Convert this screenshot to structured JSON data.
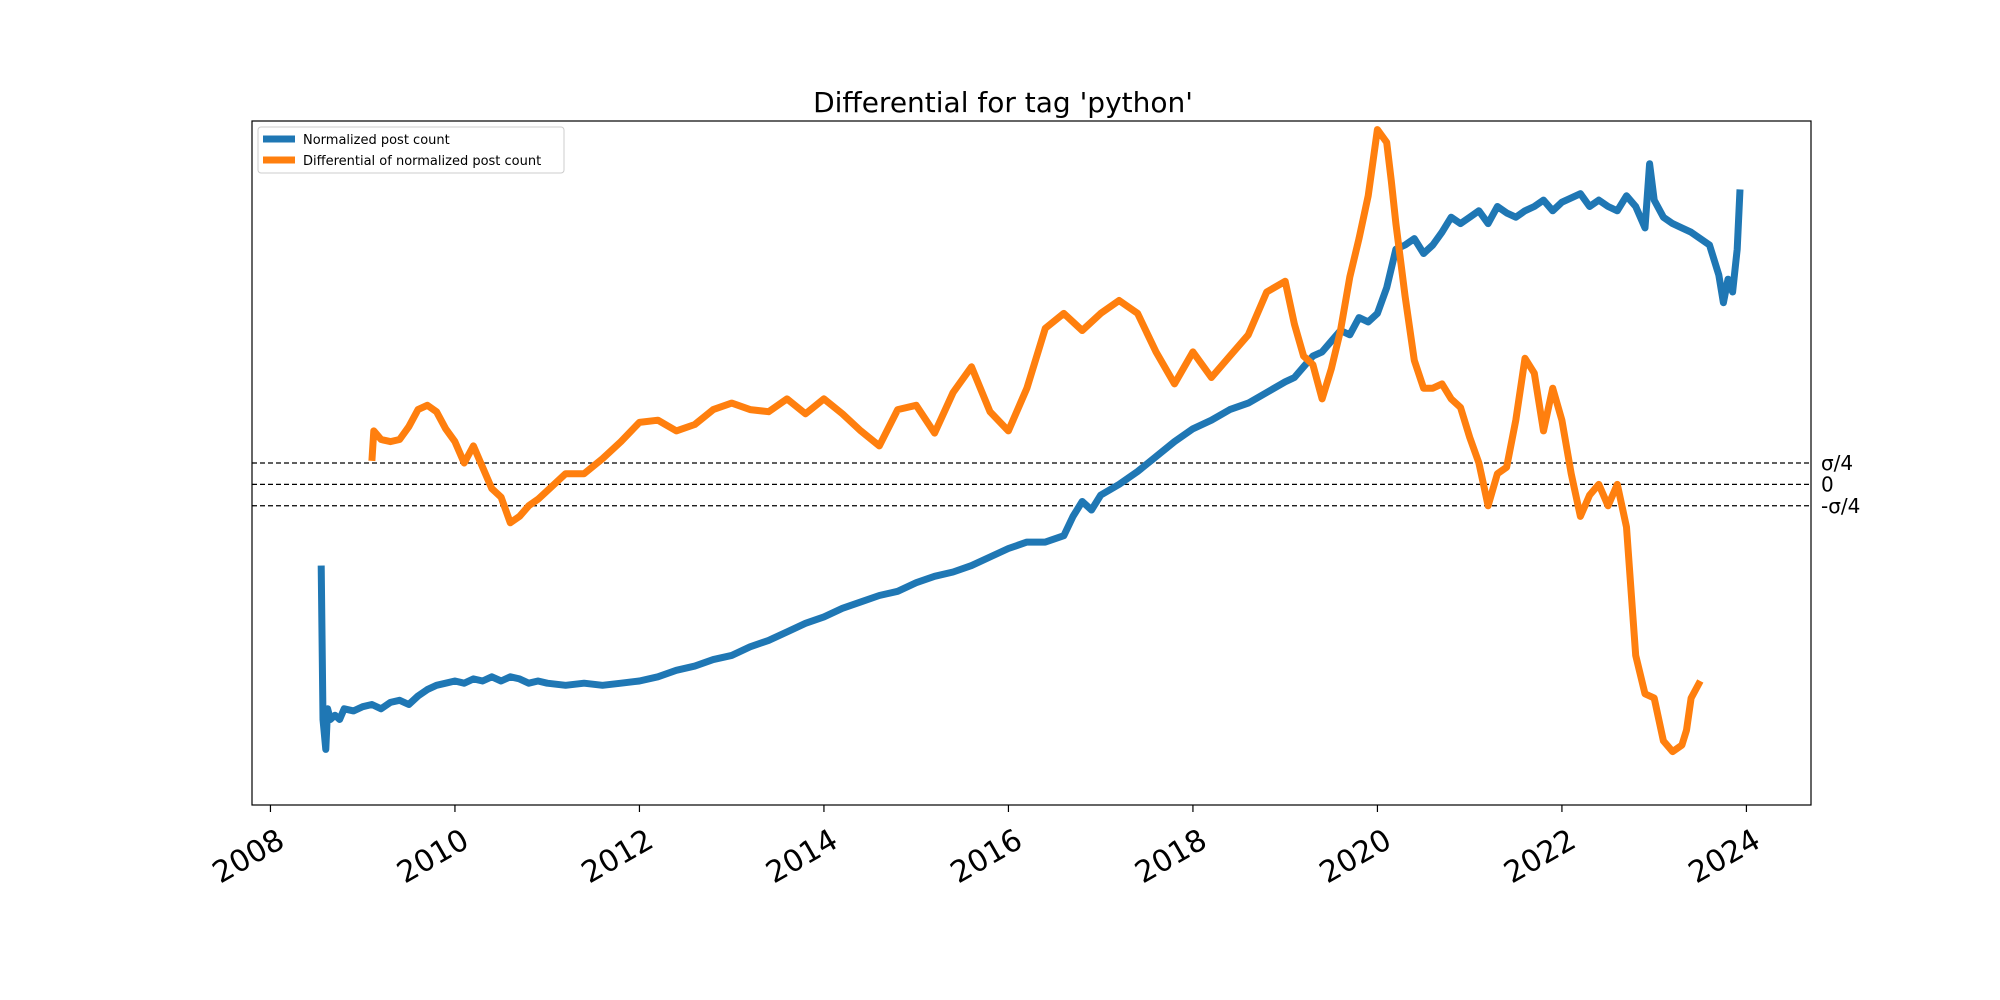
{
  "chart_data": {
    "type": "line",
    "title": "Differential for tag 'python'",
    "xlabel": "",
    "ylabel": "",
    "xlim": [
      2007.8,
      2024.7
    ],
    "ylim": [
      -1.5,
      1.7
    ],
    "x_ticks": [
      {
        "value": 2008,
        "label": "2008"
      },
      {
        "value": 2010,
        "label": "2010"
      },
      {
        "value": 2012,
        "label": "2012"
      },
      {
        "value": 2014,
        "label": "2014"
      },
      {
        "value": 2016,
        "label": "2016"
      },
      {
        "value": 2018,
        "label": "2018"
      },
      {
        "value": 2020,
        "label": "2020"
      },
      {
        "value": 2022,
        "label": "2022"
      },
      {
        "value": 2024,
        "label": "2024"
      }
    ],
    "reference_lines": [
      {
        "value": 0.1,
        "label": "σ/4"
      },
      {
        "value": 0.0,
        "label": "0"
      },
      {
        "value": -0.1,
        "label": "-σ/4"
      }
    ],
    "grid": false,
    "legend": "top-left",
    "series": [
      {
        "name": "Normalized post count",
        "color": "#1f77b4",
        "x": [
          2008.55,
          2008.57,
          2008.6,
          2008.62,
          2008.65,
          2008.7,
          2008.75,
          2008.8,
          2008.9,
          2009.0,
          2009.1,
          2009.2,
          2009.3,
          2009.4,
          2009.5,
          2009.6,
          2009.7,
          2009.8,
          2009.9,
          2010.0,
          2010.1,
          2010.2,
          2010.3,
          2010.4,
          2010.5,
          2010.6,
          2010.7,
          2010.8,
          2010.9,
          2011.0,
          2011.2,
          2011.4,
          2011.6,
          2011.8,
          2012.0,
          2012.2,
          2012.4,
          2012.6,
          2012.8,
          2013.0,
          2013.2,
          2013.4,
          2013.6,
          2013.8,
          2014.0,
          2014.2,
          2014.4,
          2014.6,
          2014.8,
          2015.0,
          2015.2,
          2015.4,
          2015.6,
          2015.8,
          2016.0,
          2016.2,
          2016.4,
          2016.6,
          2016.7,
          2016.8,
          2016.9,
          2017.0,
          2017.2,
          2017.4,
          2017.6,
          2017.8,
          2018.0,
          2018.2,
          2018.4,
          2018.6,
          2018.8,
          2019.0,
          2019.1,
          2019.2,
          2019.3,
          2019.4,
          2019.5,
          2019.6,
          2019.7,
          2019.8,
          2019.9,
          2020.0,
          2020.1,
          2020.2,
          2020.3,
          2020.4,
          2020.5,
          2020.6,
          2020.7,
          2020.8,
          2020.9,
          2021.0,
          2021.1,
          2021.2,
          2021.3,
          2021.4,
          2021.5,
          2021.6,
          2021.7,
          2021.8,
          2021.9,
          2022.0,
          2022.1,
          2022.2,
          2022.3,
          2022.4,
          2022.5,
          2022.6,
          2022.7,
          2022.8,
          2022.9,
          2022.95,
          2023.0,
          2023.1,
          2023.2,
          2023.3,
          2023.4,
          2023.5,
          2023.6,
          2023.7,
          2023.75,
          2023.8,
          2023.85,
          2023.9,
          2023.93
        ],
        "y": [
          -0.38,
          -1.1,
          -1.24,
          -1.05,
          -1.1,
          -1.08,
          -1.1,
          -1.05,
          -1.06,
          -1.04,
          -1.03,
          -1.05,
          -1.02,
          -1.01,
          -1.03,
          -0.99,
          -0.96,
          -0.94,
          -0.93,
          -0.92,
          -0.93,
          -0.91,
          -0.92,
          -0.9,
          -0.92,
          -0.9,
          -0.91,
          -0.93,
          -0.92,
          -0.93,
          -0.94,
          -0.93,
          -0.94,
          -0.93,
          -0.92,
          -0.9,
          -0.87,
          -0.85,
          -0.82,
          -0.8,
          -0.76,
          -0.73,
          -0.69,
          -0.65,
          -0.62,
          -0.58,
          -0.55,
          -0.52,
          -0.5,
          -0.46,
          -0.43,
          -0.41,
          -0.38,
          -0.34,
          -0.3,
          -0.27,
          -0.27,
          -0.24,
          -0.15,
          -0.08,
          -0.12,
          -0.05,
          0.0,
          0.06,
          0.13,
          0.2,
          0.26,
          0.3,
          0.35,
          0.38,
          0.43,
          0.48,
          0.5,
          0.55,
          0.6,
          0.62,
          0.67,
          0.72,
          0.7,
          0.78,
          0.76,
          0.8,
          0.92,
          1.1,
          1.12,
          1.15,
          1.08,
          1.12,
          1.18,
          1.25,
          1.22,
          1.25,
          1.28,
          1.22,
          1.3,
          1.27,
          1.25,
          1.28,
          1.3,
          1.33,
          1.28,
          1.32,
          1.34,
          1.36,
          1.3,
          1.33,
          1.3,
          1.28,
          1.35,
          1.3,
          1.2,
          1.5,
          1.33,
          1.25,
          1.22,
          1.2,
          1.18,
          1.15,
          1.12,
          0.98,
          0.85,
          0.96,
          0.9,
          1.1,
          1.38
        ]
      },
      {
        "name": "Differential of normalized post count",
        "color": "#ff7f0e",
        "x": [
          2009.1,
          2009.12,
          2009.2,
          2009.3,
          2009.4,
          2009.5,
          2009.6,
          2009.7,
          2009.8,
          2009.9,
          2010.0,
          2010.1,
          2010.2,
          2010.3,
          2010.4,
          2010.5,
          2010.6,
          2010.7,
          2010.8,
          2010.9,
          2011.0,
          2011.2,
          2011.4,
          2011.6,
          2011.8,
          2012.0,
          2012.2,
          2012.4,
          2012.6,
          2012.8,
          2013.0,
          2013.2,
          2013.4,
          2013.6,
          2013.8,
          2014.0,
          2014.2,
          2014.4,
          2014.6,
          2014.8,
          2015.0,
          2015.2,
          2015.4,
          2015.6,
          2015.8,
          2016.0,
          2016.2,
          2016.4,
          2016.6,
          2016.8,
          2017.0,
          2017.2,
          2017.4,
          2017.6,
          2017.8,
          2018.0,
          2018.2,
          2018.4,
          2018.6,
          2018.8,
          2019.0,
          2019.1,
          2019.2,
          2019.3,
          2019.4,
          2019.5,
          2019.6,
          2019.7,
          2019.8,
          2019.9,
          2020.0,
          2020.1,
          2020.15,
          2020.2,
          2020.3,
          2020.4,
          2020.5,
          2020.6,
          2020.7,
          2020.8,
          2020.9,
          2021.0,
          2021.1,
          2021.2,
          2021.3,
          2021.4,
          2021.5,
          2021.6,
          2021.7,
          2021.8,
          2021.9,
          2022.0,
          2022.1,
          2022.2,
          2022.3,
          2022.4,
          2022.5,
          2022.6,
          2022.7,
          2022.8,
          2022.9,
          2023.0,
          2023.1,
          2023.2,
          2023.3,
          2023.35,
          2023.4,
          2023.5
        ],
        "y": [
          0.11,
          0.25,
          0.21,
          0.2,
          0.21,
          0.27,
          0.35,
          0.37,
          0.34,
          0.26,
          0.2,
          0.1,
          0.18,
          0.08,
          -0.02,
          -0.06,
          -0.18,
          -0.15,
          -0.1,
          -0.07,
          -0.03,
          0.05,
          0.05,
          0.12,
          0.2,
          0.29,
          0.3,
          0.25,
          0.28,
          0.35,
          0.38,
          0.35,
          0.34,
          0.4,
          0.33,
          0.4,
          0.33,
          0.25,
          0.18,
          0.35,
          0.37,
          0.24,
          0.43,
          0.55,
          0.34,
          0.25,
          0.45,
          0.73,
          0.8,
          0.72,
          0.8,
          0.86,
          0.8,
          0.62,
          0.47,
          0.62,
          0.5,
          0.6,
          0.7,
          0.9,
          0.95,
          0.75,
          0.6,
          0.56,
          0.4,
          0.54,
          0.72,
          0.97,
          1.15,
          1.35,
          1.66,
          1.6,
          1.42,
          1.22,
          0.88,
          0.58,
          0.45,
          0.45,
          0.47,
          0.4,
          0.36,
          0.22,
          0.1,
          -0.1,
          0.05,
          0.08,
          0.3,
          0.59,
          0.52,
          0.25,
          0.45,
          0.3,
          0.05,
          -0.15,
          -0.05,
          0.0,
          -0.1,
          0.0,
          -0.2,
          -0.8,
          -0.98,
          -1.0,
          -1.2,
          -1.25,
          -1.22,
          -1.15,
          -1.0,
          -0.92
        ]
      }
    ]
  }
}
